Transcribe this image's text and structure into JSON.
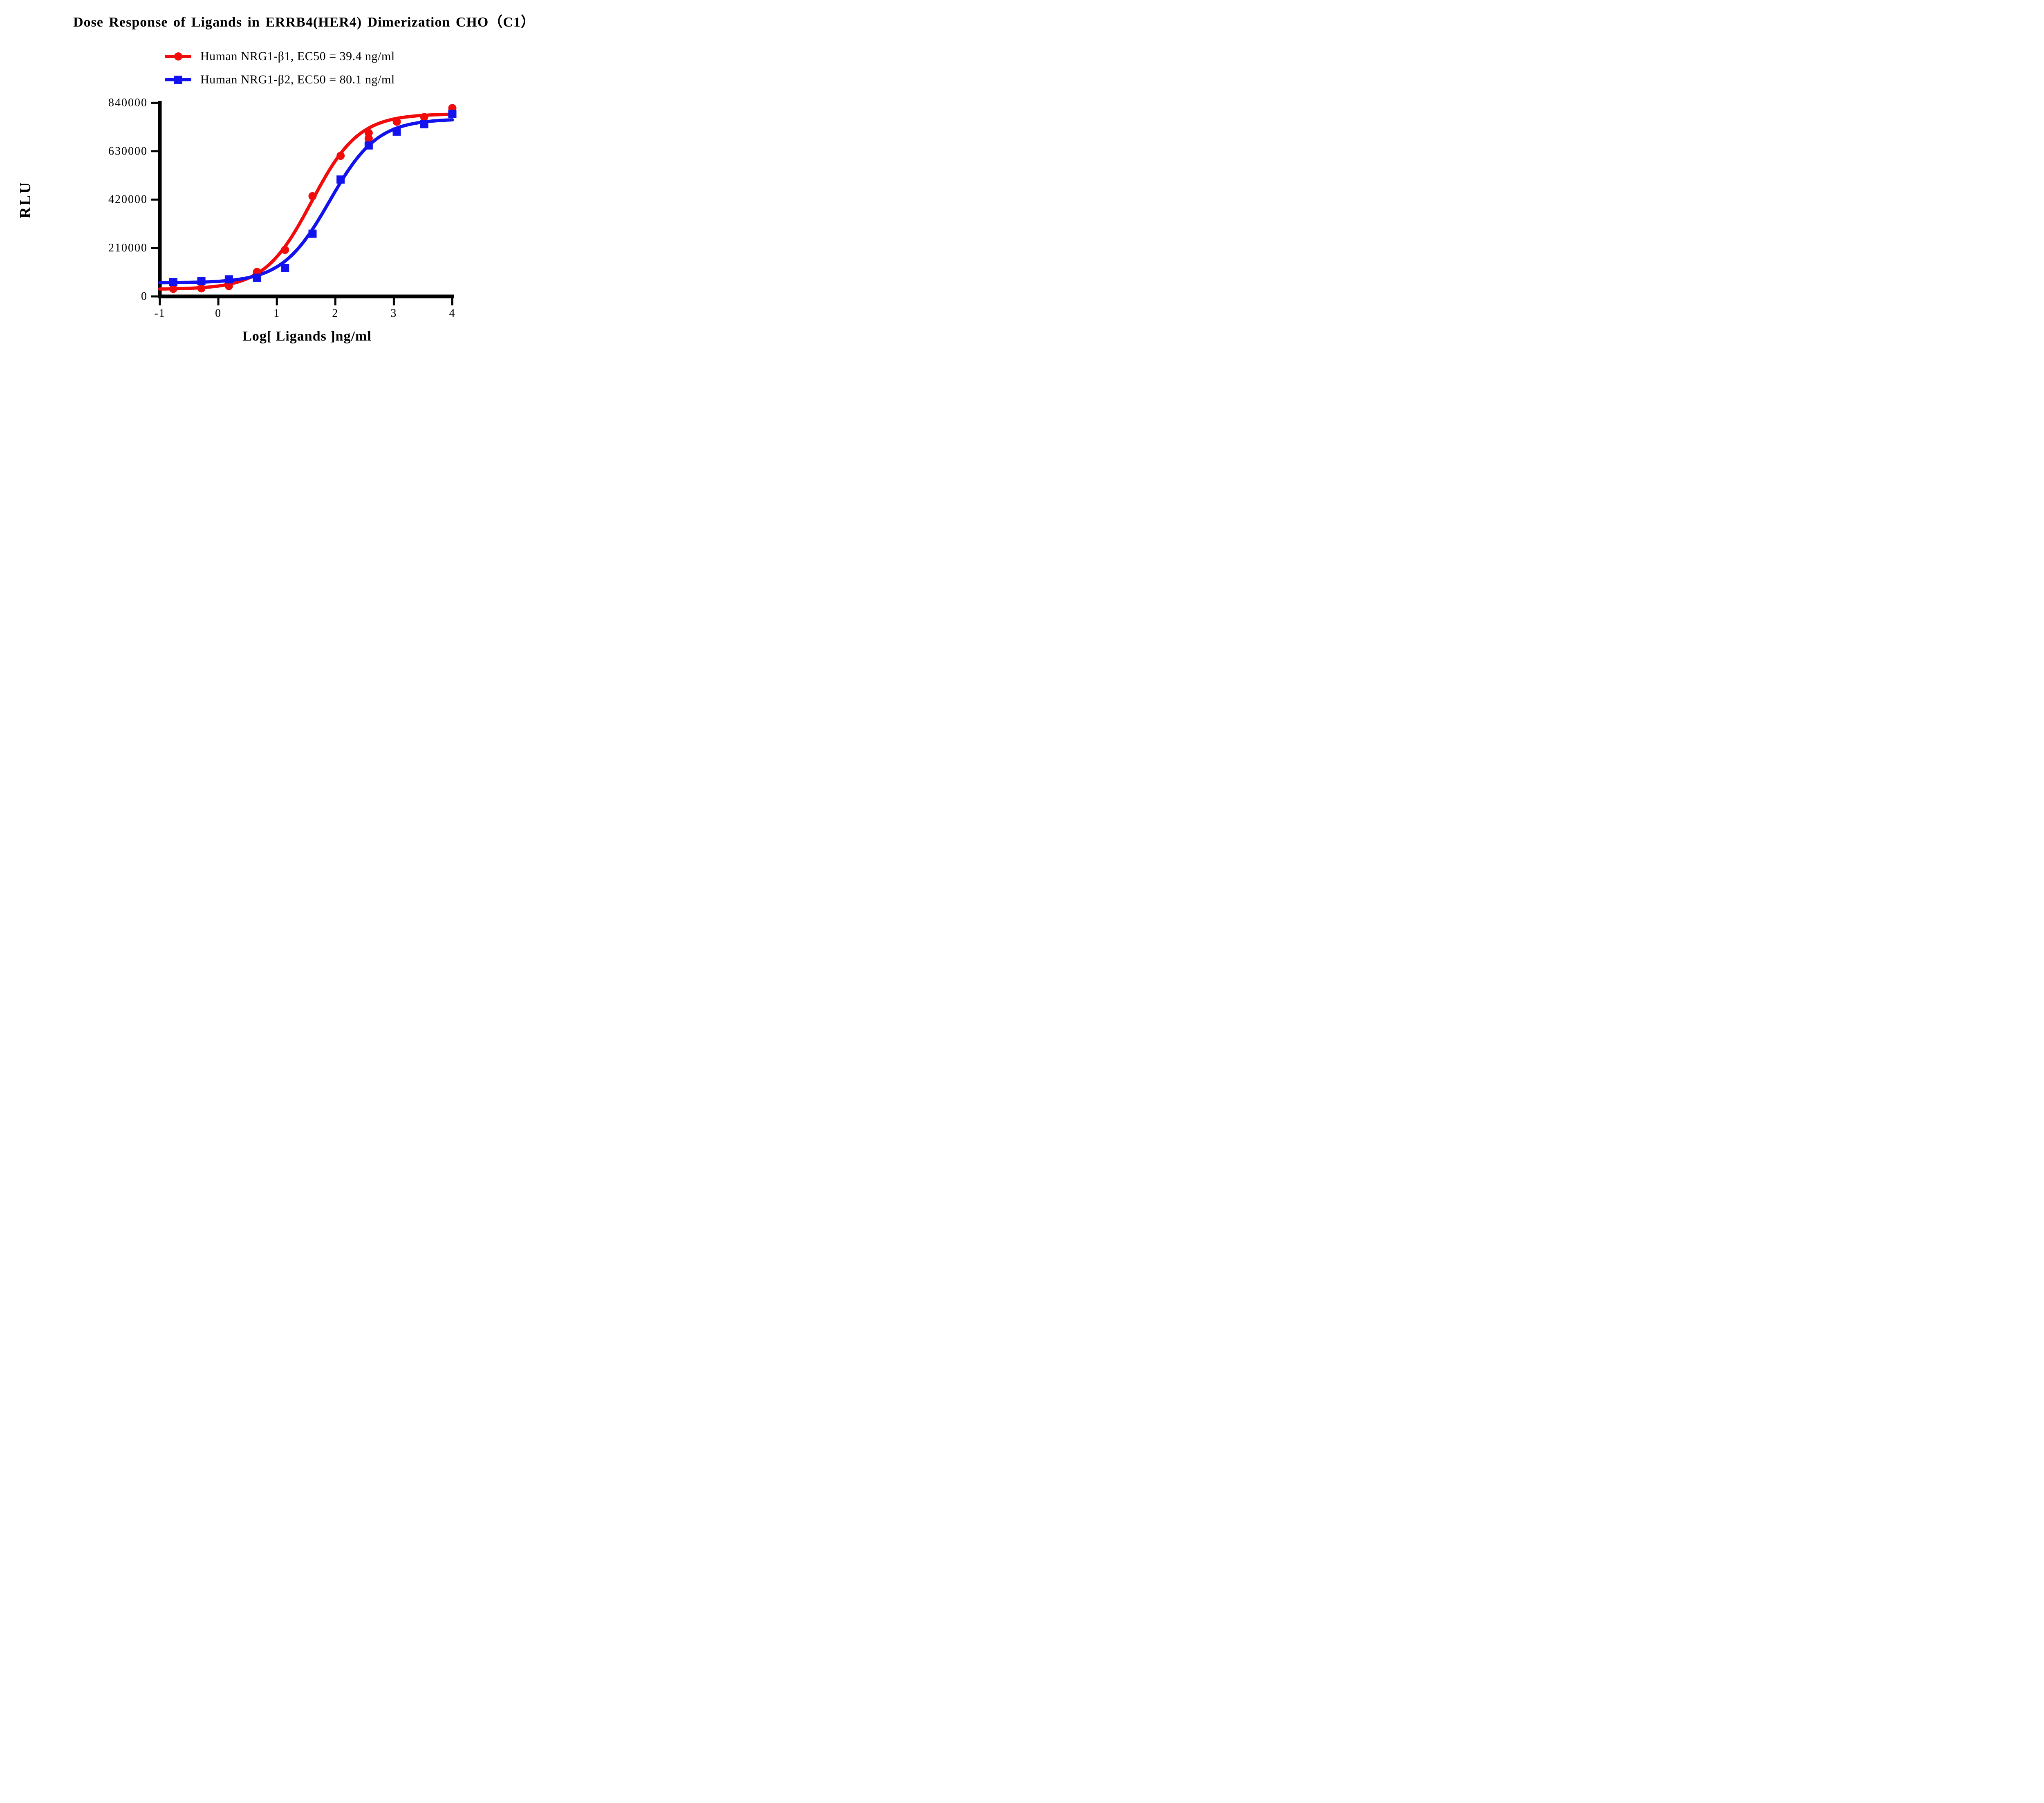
{
  "chart_data": {
    "type": "line",
    "title": "Dose Response of Ligands in ERRB4(HER4) Dimerization CHO（C1）",
    "xlabel": "Log[ Ligands ]ng/ml",
    "ylabel": "RLU",
    "xlim": [
      -1,
      4
    ],
    "ylim": [
      0,
      840000
    ],
    "xticks": [
      "-1",
      "0",
      "1",
      "2",
      "3",
      "4"
    ],
    "yticks": [
      "0",
      "210000",
      "420000",
      "630000",
      "840000"
    ],
    "xtick_values": [
      -1,
      0,
      1,
      2,
      3,
      4
    ],
    "ytick_values": [
      0,
      210000,
      420000,
      630000,
      840000
    ],
    "grid": false,
    "legend_position": "top-center",
    "axis_color": "#000000",
    "background_color": "#ffffff",
    "series": [
      {
        "name": "Human NRG1-β1",
        "ec50": "39.4 ng/ml",
        "legend_label": "Human NRG1-β1, EC50 = 39.4 ng/ml",
        "color": "#f20b0b",
        "marker": "circle",
        "points": [
          [
            -0.77,
            33000
          ],
          [
            -0.29,
            35000
          ],
          [
            0.18,
            45000
          ],
          [
            0.66,
            106000
          ],
          [
            1.14,
            202000
          ],
          [
            1.61,
            435000
          ],
          [
            2.09,
            610000
          ],
          [
            2.57,
            685000
          ],
          [
            2.57,
            709000
          ],
          [
            3.05,
            758000
          ],
          [
            3.52,
            778000
          ],
          [
            4.0,
            817000
          ]
        ],
        "fit": {
          "bottom": 31000,
          "top": 792000,
          "logEC50": 1.5955,
          "hill": 1.08
        }
      },
      {
        "name": "Human NRG1-β2",
        "ec50": "80.1 ng/ml",
        "legend_label": "Human NRG1-β2, EC50 = 80.1 ng/ml",
        "color": "#1212ee",
        "marker": "square",
        "points": [
          [
            -0.77,
            62000
          ],
          [
            -0.29,
            67000
          ],
          [
            0.18,
            74000
          ],
          [
            0.66,
            81000
          ],
          [
            1.14,
            124000
          ],
          [
            1.61,
            272000
          ],
          [
            2.09,
            507000
          ],
          [
            2.57,
            655000
          ],
          [
            3.05,
            715000
          ],
          [
            3.52,
            747000
          ],
          [
            4.0,
            792000
          ]
        ],
        "fit": {
          "bottom": 59000,
          "top": 770000,
          "logEC50": 1.9036,
          "hill": 1.07
        }
      }
    ]
  }
}
